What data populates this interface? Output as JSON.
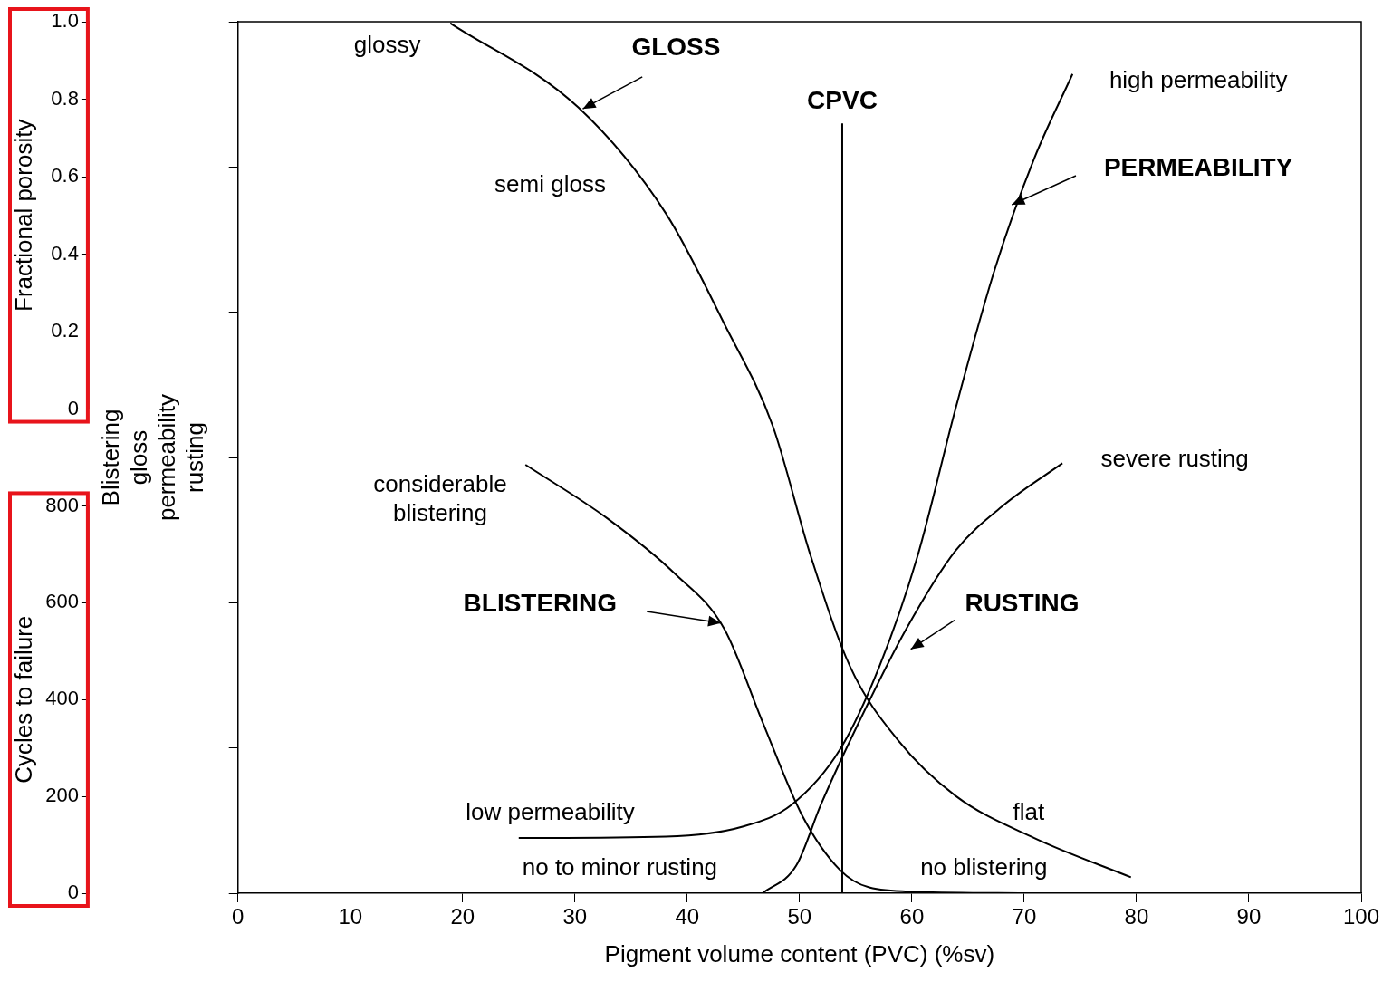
{
  "chart_data": {
    "type": "line",
    "x_label": "Pigment volume content (PVC) (%sv)",
    "y_label": "Blistering gloss permeability rusting",
    "xlim": [
      0,
      100
    ],
    "xticks": [
      0,
      10,
      20,
      30,
      40,
      50,
      60,
      70,
      80,
      90,
      100
    ],
    "ylim": [
      0,
      6
    ],
    "yticks": [
      0,
      1,
      2,
      3,
      4,
      5,
      6
    ],
    "tick_labels": "x",
    "grid": false,
    "series": [
      {
        "name": "GLOSS",
        "color": "#000000",
        "x": [
          18.9,
          30.3,
          38.1,
          43.3,
          47.6,
          51.0,
          54.5,
          58.8,
          63.9,
          70.9,
          79.5
        ],
        "values": [
          5.99,
          5.41,
          4.68,
          3.92,
          3.22,
          2.32,
          1.56,
          1.05,
          0.67,
          0.38,
          0.11
        ]
      },
      {
        "name": "PERMEABILITY",
        "color": "#000000",
        "x": [
          25.0,
          38.1,
          45.0,
          49.3,
          53.6,
          57.1,
          60.5,
          63.9,
          67.4,
          70.9,
          74.3
        ],
        "values": [
          0.38,
          0.39,
          0.46,
          0.61,
          0.99,
          1.56,
          2.32,
          3.34,
          4.3,
          5.06,
          5.64
        ]
      },
      {
        "name": "BLISTERING",
        "color": "#000000",
        "x": [
          25.6,
          32.9,
          38.9,
          43.3,
          46.7,
          50.2,
          53.6,
          56.2,
          60.5,
          70.9
        ],
        "values": [
          2.95,
          2.58,
          2.2,
          1.82,
          1.18,
          0.54,
          0.16,
          0.04,
          0.01,
          0
        ]
      },
      {
        "name": "RUSTING",
        "color": "#000000",
        "x": [
          46.7,
          49.7,
          51.9,
          55.3,
          59.5,
          63.9,
          68.3,
          73.4
        ],
        "values": [
          0,
          0.19,
          0.61,
          1.18,
          1.82,
          2.36,
          2.68,
          2.96
        ]
      }
    ],
    "reference_line": {
      "label": "CPVC",
      "color": "#000000",
      "x": 53.8,
      "y": [
        0,
        5.3
      ]
    },
    "annotations": [
      "glossy",
      "semi gloss",
      "flat",
      "high permeability",
      "low permeability",
      "considerable blistering",
      "no blistering",
      "severe rusting",
      "no to minor rusting"
    ],
    "side_axes": [
      {
        "title": "Fractional porosity",
        "ylim": [
          0,
          1
        ],
        "yticks": [
          0,
          0.2,
          0.4,
          0.6,
          0.8,
          {
            "value": 1,
            "label": "1.0"
          }
        ]
      },
      {
        "title": "Cycles to failure",
        "ylim": [
          0,
          800
        ],
        "yticks": [
          0,
          200,
          400,
          600,
          800
        ]
      }
    ]
  }
}
